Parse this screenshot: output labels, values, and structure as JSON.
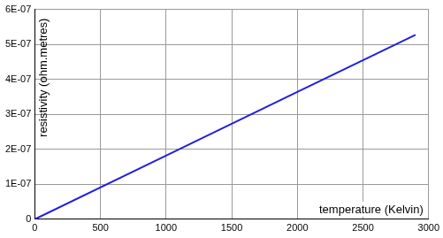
{
  "chart_data": {
    "type": "line",
    "x_label": "temperature (Kelvin)",
    "y_label": "resistivity (ohm.metres)",
    "x": [
      0,
      1000,
      2000,
      2900
    ],
    "values": [
      0,
      1.82e-07,
      3.64e-07,
      5.27e-07
    ],
    "color": "#1f1fe0",
    "xlim": [
      0,
      3000
    ],
    "xticks": [
      0,
      500,
      1000,
      1500,
      2000,
      2500,
      3000
    ],
    "ylim": [
      0,
      6e-07
    ],
    "yticks": [
      0,
      {
        "value": 1e-07,
        "label": "1E-07"
      },
      {
        "value": 2e-07,
        "label": "2E-07"
      },
      {
        "value": 3e-07,
        "label": "3E-07"
      },
      {
        "value": 4e-07,
        "label": "4E-07"
      },
      {
        "value": 5e-07,
        "label": "5E-07"
      },
      {
        "value": 6e-07,
        "label": "6E-07"
      }
    ],
    "grid": true
  }
}
